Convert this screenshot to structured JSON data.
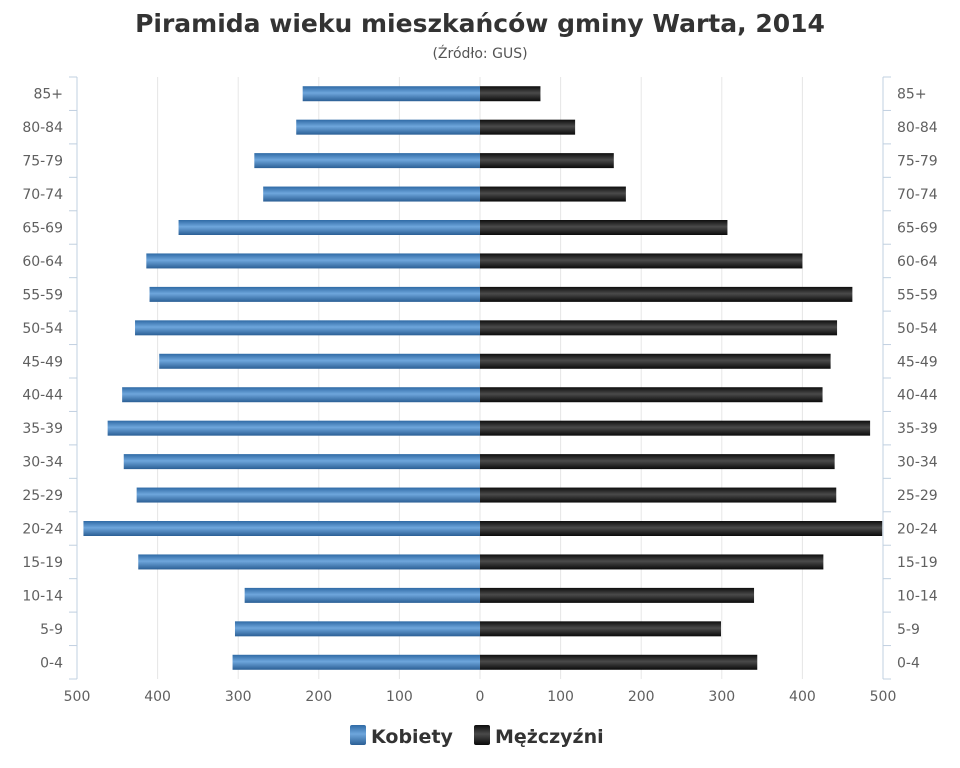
{
  "chart_data": {
    "type": "bar",
    "orientation": "horizontal",
    "title": "Piramida wieku mieszkańców gminy Warta, 2014",
    "subtitle": "(Źródło: GUS)",
    "categories": [
      "85+",
      "80-84",
      "75-79",
      "70-74",
      "65-69",
      "60-64",
      "55-59",
      "50-54",
      "45-49",
      "40-44",
      "35-39",
      "30-34",
      "25-29",
      "20-24",
      "15-19",
      "10-14",
      "5-9",
      "0-4"
    ],
    "series": [
      {
        "name": "Kobiety",
        "color": "#3d7ab8",
        "values": [
          220,
          228,
          280,
          269,
          374,
          414,
          410,
          428,
          398,
          444,
          462,
          442,
          426,
          492,
          424,
          292,
          304,
          307
        ]
      },
      {
        "name": "Mężczyźni",
        "color": "#1a1a1a",
        "values": [
          75,
          118,
          166,
          181,
          307,
          400,
          462,
          443,
          435,
          425,
          484,
          440,
          442,
          499,
          426,
          340,
          299,
          344
        ]
      }
    ],
    "x_ticks": [
      "500",
      "400",
      "300",
      "200",
      "100",
      "0",
      "100",
      "200",
      "300",
      "400",
      "500"
    ],
    "xlim": [
      -500,
      500
    ],
    "grid": true,
    "legend_position": "bottom"
  }
}
